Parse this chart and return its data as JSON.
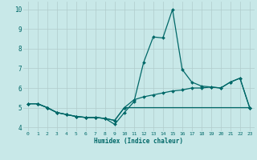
{
  "xlabel": "Humidex (Indice chaleur)",
  "xlim": [
    -0.5,
    23.5
  ],
  "ylim": [
    3.8,
    10.4
  ],
  "xticks": [
    0,
    1,
    2,
    3,
    4,
    5,
    6,
    7,
    8,
    9,
    10,
    11,
    12,
    13,
    14,
    15,
    16,
    17,
    18,
    19,
    20,
    21,
    22,
    23
  ],
  "yticks": [
    4,
    5,
    6,
    7,
    8,
    9,
    10
  ],
  "bg_color": "#c8e8e8",
  "grid_color": "#b0cccc",
  "line_color": "#006868",
  "line_width": 0.9,
  "marker": "D",
  "marker_size": 2.0,
  "series": [
    {
      "x": [
        0,
        1,
        2,
        3,
        4,
        5,
        6,
        7,
        8,
        9,
        10,
        11,
        12,
        13,
        14,
        15,
        16,
        17,
        18,
        19,
        20,
        21,
        22,
        23
      ],
      "y": [
        5.2,
        5.2,
        5.0,
        4.75,
        4.65,
        4.55,
        4.5,
        4.5,
        4.45,
        4.15,
        4.75,
        5.3,
        7.3,
        8.6,
        8.55,
        10.0,
        6.95,
        6.3,
        6.1,
        6.05,
        6.0,
        6.3,
        6.5,
        5.0
      ]
    },
    {
      "x": [
        0,
        1,
        2,
        3,
        4,
        5,
        6,
        7,
        8,
        9,
        10,
        11,
        12,
        13,
        14,
        15,
        16,
        17,
        18,
        19,
        20,
        21,
        22,
        23
      ],
      "y": [
        5.2,
        5.2,
        5.0,
        4.75,
        4.65,
        4.55,
        4.5,
        4.5,
        4.45,
        4.35,
        5.0,
        5.4,
        5.55,
        5.65,
        5.75,
        5.85,
        5.9,
        6.0,
        6.0,
        6.05,
        6.0,
        6.3,
        6.5,
        5.0
      ]
    },
    {
      "x": [
        0,
        1,
        2,
        3,
        4,
        5,
        6,
        7,
        8,
        9,
        10,
        23
      ],
      "y": [
        5.2,
        5.2,
        5.0,
        4.75,
        4.65,
        4.55,
        4.5,
        4.5,
        4.45,
        4.35,
        5.0,
        5.0
      ]
    }
  ]
}
